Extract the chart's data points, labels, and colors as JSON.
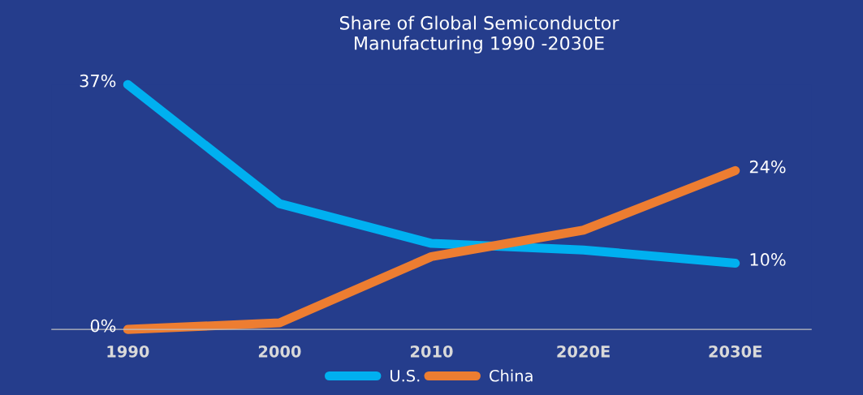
{
  "chart_data": {
    "type": "line",
    "title": "Share of Global Semiconductor\nManufacturing 1990 -2030E",
    "categories": [
      "1990",
      "2000",
      "2010",
      "2020E",
      "2030E"
    ],
    "series": [
      {
        "name": "U.S.",
        "color": "#00b0f0",
        "values": [
          37,
          19,
          13,
          12,
          10
        ],
        "value_labels": [
          "37%",
          null,
          null,
          null,
          "10%"
        ]
      },
      {
        "name": "China",
        "color": "#ed7d31",
        "values": [
          0,
          1,
          11,
          15,
          24
        ],
        "value_labels": [
          "0%",
          null,
          null,
          null,
          "24%"
        ]
      }
    ],
    "legend": "bottom",
    "grid": false,
    "marker": "none",
    "line_style": "solid"
  }
}
